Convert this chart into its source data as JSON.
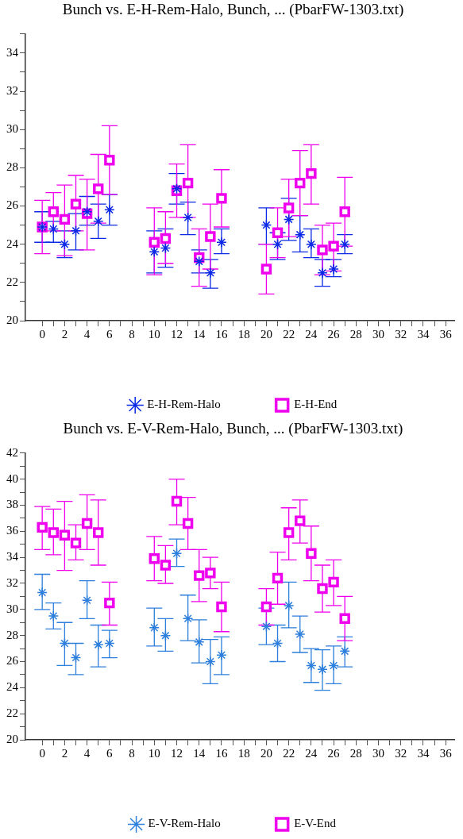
{
  "chart_data": [
    {
      "type": "scatter",
      "title": "Bunch vs. E-H-Rem-Halo, Bunch, ... (PbarFW-1303.txt)",
      "legend": "bottom",
      "grid": false,
      "xlim": [
        -1.5,
        36.8
      ],
      "xticks": [
        0,
        {
          "value": 1,
          "label": null
        },
        2,
        {
          "value": 3,
          "label": null
        },
        4,
        {
          "value": 5,
          "label": null
        },
        6,
        {
          "value": 7,
          "label": null
        },
        8,
        {
          "value": 9,
          "label": null
        },
        10,
        {
          "value": 11,
          "label": null
        },
        12,
        {
          "value": 13,
          "label": null
        },
        14,
        {
          "value": 15,
          "label": null
        },
        16,
        {
          "value": 17,
          "label": null
        },
        18,
        {
          "value": 19,
          "label": null
        },
        20,
        {
          "value": 21,
          "label": null
        },
        22,
        {
          "value": 23,
          "label": null
        },
        24,
        {
          "value": 25,
          "label": null
        },
        26,
        {
          "value": 27,
          "label": null
        },
        28,
        {
          "value": 29,
          "label": null
        },
        30,
        {
          "value": 31,
          "label": null
        },
        32,
        {
          "value": 33,
          "label": null
        },
        34,
        {
          "value": 35,
          "label": null
        },
        36
      ],
      "ylim": [
        20,
        35
      ],
      "yticks": [
        20,
        {
          "value": 21,
          "label": null
        },
        22,
        {
          "value": 23,
          "label": null
        },
        24,
        {
          "value": 25,
          "label": null
        },
        26,
        {
          "value": 27,
          "label": null
        },
        28,
        {
          "value": 29,
          "label": null
        },
        30,
        {
          "value": 31,
          "label": null
        },
        32,
        {
          "value": 33,
          "label": null
        },
        34,
        {
          "value": 35,
          "label": null
        }
      ],
      "series": [
        {
          "name": "E-H-Rem-Halo",
          "color": "#0a28e6",
          "marker": "cross",
          "x": [
            0,
            1,
            2,
            3,
            4,
            5,
            6,
            10,
            11,
            12,
            13,
            14,
            15,
            16,
            20,
            21,
            22,
            23,
            24,
            25,
            26,
            27
          ],
          "values": [
            24.9,
            24.8,
            24.0,
            24.7,
            25.7,
            25.2,
            25.8,
            23.6,
            23.8,
            26.9,
            25.4,
            23.1,
            22.5,
            24.1,
            25.0,
            24.0,
            25.3,
            24.5,
            24.0,
            22.5,
            22.7,
            24.0
          ],
          "errors": [
            [
              24.1,
              25.7
            ],
            [
              24.1,
              25.2
            ],
            [
              23.3,
              24.7
            ],
            [
              23.7,
              25.6
            ],
            [
              25.0,
              26.5
            ],
            [
              24.3,
              26.1
            ],
            [
              25.0,
              26.6
            ],
            [
              22.5,
              24.7
            ],
            [
              22.8,
              24.8
            ],
            [
              26.1,
              27.7
            ],
            [
              24.5,
              26.2
            ],
            [
              22.5,
              23.7
            ],
            [
              21.7,
              23.2
            ],
            [
              23.5,
              24.8
            ],
            [
              24.0,
              25.9
            ],
            [
              23.2,
              24.6
            ],
            [
              24.2,
              26.4
            ],
            [
              23.6,
              25.5
            ],
            [
              23.3,
              24.8
            ],
            [
              21.8,
              23.2
            ],
            [
              22.3,
              23.2
            ],
            [
              23.5,
              24.5
            ]
          ]
        },
        {
          "name": "E-H-End",
          "color": "#ee00ee",
          "marker": "square",
          "x": [
            0,
            1,
            2,
            3,
            4,
            5,
            6,
            10,
            11,
            12,
            13,
            14,
            15,
            16,
            20,
            21,
            22,
            23,
            24,
            25,
            26,
            27
          ],
          "values": [
            24.9,
            25.7,
            25.3,
            26.1,
            25.6,
            26.9,
            28.4,
            24.1,
            24.3,
            26.8,
            27.2,
            23.3,
            24.4,
            26.4,
            22.7,
            24.6,
            25.9,
            27.2,
            27.7,
            23.7,
            23.9,
            25.7
          ],
          "errors": [
            [
              23.5,
              26.3
            ],
            [
              24.7,
              26.7
            ],
            [
              23.4,
              27.1
            ],
            [
              24.7,
              27.6
            ],
            [
              23.7,
              27.4
            ],
            [
              25.1,
              28.7
            ],
            [
              26.6,
              30.2
            ],
            [
              22.4,
              25.9
            ],
            [
              23.0,
              25.7
            ],
            [
              25.4,
              28.2
            ],
            [
              25.4,
              29.2
            ],
            [
              21.8,
              24.8
            ],
            [
              22.7,
              26.1
            ],
            [
              24.9,
              27.9
            ],
            [
              21.4,
              24.0
            ],
            [
              23.3,
              25.9
            ],
            [
              24.4,
              27.4
            ],
            [
              25.5,
              28.9
            ],
            [
              26.1,
              29.2
            ],
            [
              22.4,
              25.0
            ],
            [
              22.6,
              25.1
            ],
            [
              23.9,
              27.5
            ]
          ]
        }
      ]
    },
    {
      "type": "scatter",
      "title": "Bunch vs. E-V-Rem-Halo, Bunch, ... (PbarFW-1303.txt)",
      "legend": "bottom",
      "grid": false,
      "xlim": [
        -1.5,
        36.8
      ],
      "xticks": [
        0,
        {
          "value": 1,
          "label": null
        },
        2,
        {
          "value": 3,
          "label": null
        },
        4,
        {
          "value": 5,
          "label": null
        },
        6,
        {
          "value": 7,
          "label": null
        },
        8,
        {
          "value": 9,
          "label": null
        },
        10,
        {
          "value": 11,
          "label": null
        },
        12,
        {
          "value": 13,
          "label": null
        },
        14,
        {
          "value": 15,
          "label": null
        },
        16,
        {
          "value": 17,
          "label": null
        },
        18,
        {
          "value": 19,
          "label": null
        },
        20,
        {
          "value": 21,
          "label": null
        },
        22,
        {
          "value": 23,
          "label": null
        },
        24,
        {
          "value": 25,
          "label": null
        },
        26,
        {
          "value": 27,
          "label": null
        },
        28,
        {
          "value": 29,
          "label": null
        },
        30,
        {
          "value": 31,
          "label": null
        },
        32,
        {
          "value": 33,
          "label": null
        },
        34,
        {
          "value": 35,
          "label": null
        },
        36
      ],
      "ylim": [
        20,
        42
      ],
      "yticks": [
        20,
        {
          "value": 21,
          "label": null
        },
        22,
        {
          "value": 23,
          "label": null
        },
        24,
        {
          "value": 25,
          "label": null
        },
        26,
        {
          "value": 27,
          "label": null
        },
        28,
        {
          "value": 29,
          "label": null
        },
        30,
        {
          "value": 31,
          "label": null
        },
        32,
        {
          "value": 33,
          "label": null
        },
        34,
        {
          "value": 35,
          "label": null
        },
        36,
        {
          "value": 37,
          "label": null
        },
        38,
        {
          "value": 39,
          "label": null
        },
        40,
        {
          "value": 41,
          "label": null
        },
        42
      ],
      "series": [
        {
          "name": "E-V-Rem-Halo",
          "color": "#2c7fdc",
          "marker": "cross",
          "x": [
            0,
            1,
            2,
            3,
            4,
            5,
            6,
            10,
            11,
            12,
            13,
            14,
            15,
            16,
            20,
            21,
            22,
            23,
            24,
            25,
            26,
            27
          ],
          "values": [
            31.3,
            29.5,
            27.4,
            26.3,
            30.7,
            27.3,
            27.4,
            28.6,
            28.0,
            34.3,
            29.3,
            27.5,
            26.0,
            26.5,
            28.7,
            27.4,
            30.3,
            28.1,
            25.7,
            25.4,
            25.7,
            26.8
          ],
          "errors": [
            [
              30.0,
              32.7
            ],
            [
              28.5,
              30.5
            ],
            [
              25.7,
              29.0
            ],
            [
              25.0,
              27.4
            ],
            [
              29.3,
              32.2
            ],
            [
              25.6,
              28.8
            ],
            [
              26.3,
              28.4
            ],
            [
              27.2,
              30.1
            ],
            [
              26.8,
              29.3
            ],
            [
              33.3,
              35.4
            ],
            [
              27.6,
              31.1
            ],
            [
              25.9,
              29.2
            ],
            [
              24.3,
              27.7
            ],
            [
              25.0,
              27.9
            ],
            [
              27.3,
              30.1
            ],
            [
              26.0,
              28.8
            ],
            [
              28.6,
              32.1
            ],
            [
              26.7,
              29.5
            ],
            [
              24.4,
              27.0
            ],
            [
              23.8,
              26.9
            ],
            [
              24.3,
              27.2
            ],
            [
              25.6,
              27.9
            ]
          ]
        },
        {
          "name": "E-V-End",
          "color": "#ee00ee",
          "marker": "square",
          "x": [
            0,
            1,
            2,
            3,
            4,
            5,
            6,
            10,
            11,
            12,
            13,
            14,
            15,
            16,
            20,
            21,
            22,
            23,
            24,
            25,
            26,
            27
          ],
          "values": [
            36.3,
            35.9,
            35.7,
            35.1,
            36.6,
            35.9,
            30.5,
            33.9,
            33.4,
            38.3,
            36.6,
            32.6,
            32.8,
            30.2,
            30.2,
            32.4,
            35.9,
            36.8,
            34.3,
            31.6,
            32.1,
            29.3
          ],
          "errors": [
            [
              34.6,
              37.9
            ],
            [
              34.2,
              37.7
            ],
            [
              33.0,
              38.3
            ],
            [
              33.8,
              36.5
            ],
            [
              34.6,
              38.8
            ],
            [
              33.4,
              38.4
            ],
            [
              28.8,
              32.1
            ],
            [
              32.2,
              35.6
            ],
            [
              32.0,
              34.9
            ],
            [
              36.5,
              40.0
            ],
            [
              34.6,
              38.6
            ],
            [
              30.6,
              34.6
            ],
            [
              31.6,
              34.0
            ],
            [
              28.3,
              32.1
            ],
            [
              28.8,
              31.6
            ],
            [
              30.4,
              34.4
            ],
            [
              33.8,
              37.8
            ],
            [
              35.1,
              38.4
            ],
            [
              32.2,
              36.4
            ],
            [
              29.8,
              33.4
            ],
            [
              30.3,
              33.8
            ],
            [
              27.6,
              31.0
            ]
          ]
        }
      ]
    }
  ]
}
